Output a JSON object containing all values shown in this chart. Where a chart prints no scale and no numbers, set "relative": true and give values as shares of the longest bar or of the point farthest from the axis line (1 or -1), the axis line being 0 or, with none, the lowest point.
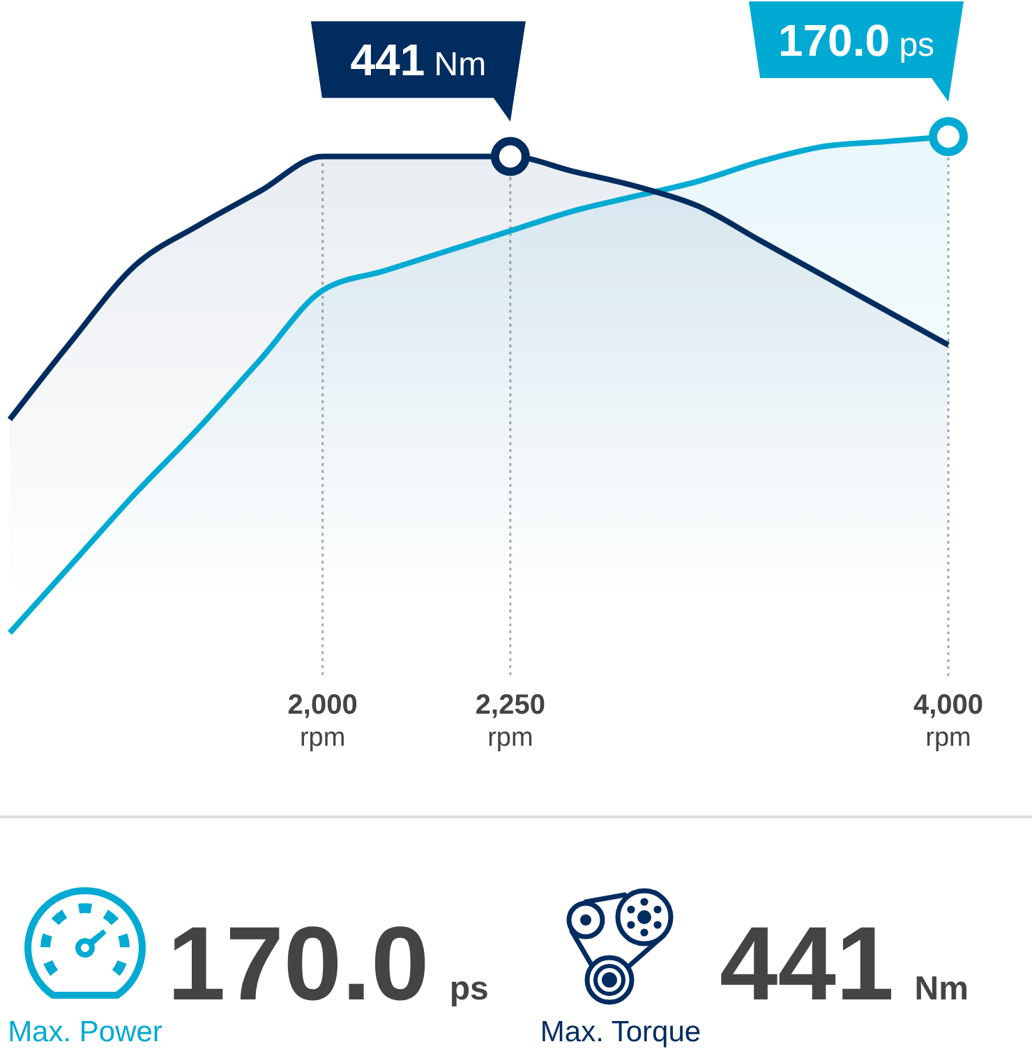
{
  "chart_data": {
    "type": "area",
    "relative": true,
    "categories": [
      null,
      null,
      null,
      null,
      null,
      "2,000 rpm",
      null,
      null,
      "2,250 rpm",
      null,
      null,
      null,
      null,
      null,
      null,
      "4,000 rpm"
    ],
    "series": [
      {
        "color": "#00aad2",
        "values": [
          0,
          0.14,
          0.28,
          0.41,
          0.55,
          0.69,
          0.73,
          0.77,
          0.81,
          0.85,
          0.88,
          0.91,
          0.95,
          0.98,
          0.99,
          1
        ]
      },
      {
        "color": "#002c5f",
        "values": [
          0.43,
          0.59,
          0.74,
          0.82,
          0.89,
          0.96,
          0.96,
          0.96,
          0.96,
          0.93,
          0.9,
          0.86,
          0.79,
          0.72,
          0.65,
          0.58
        ]
      }
    ],
    "grid": "x",
    "annotations": [
      {
        "text": "441 Nm",
        "x": "2,250 rpm",
        "y": 0.96
      },
      {
        "text": "170.0 ps",
        "x": "4,000 rpm",
        "y": 1
      },
      "170.0 ps",
      "Max. Power",
      "441 Nm",
      "Max. Torque"
    ]
  }
}
